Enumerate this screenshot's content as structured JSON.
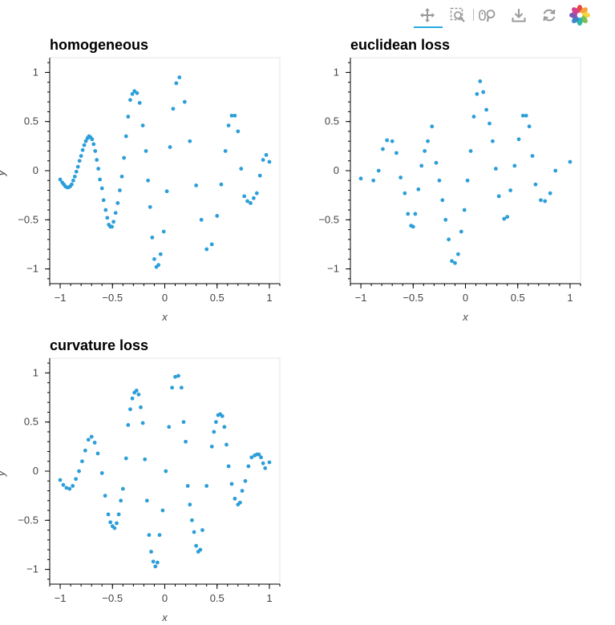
{
  "toolbar": {
    "tools": [
      {
        "name": "pan-tool",
        "icon": "move-arrows-icon",
        "active": true
      },
      {
        "name": "box-zoom-tool",
        "icon": "box-zoom-icon",
        "active": false
      },
      {
        "name": "wheel-zoom-tool",
        "icon": "wheel-zoom-icon",
        "active": false
      },
      {
        "name": "save-tool",
        "icon": "download-icon",
        "active": false
      },
      {
        "name": "reset-tool",
        "icon": "reset-icon",
        "active": false
      },
      {
        "name": "bokeh-logo",
        "icon": "bokeh-logo-icon",
        "active": false
      }
    ],
    "active_color": "#26aae1"
  },
  "chart_data": [
    {
      "type": "scatter",
      "title": "homogeneous",
      "xlabel": "x",
      "ylabel": "y",
      "xlim": [
        -1.1,
        1.1
      ],
      "ylim": [
        -1.15,
        1.15
      ],
      "xticks": [
        -1,
        -0.5,
        0,
        0.5,
        1
      ],
      "xtick_labels": [
        "−1",
        "−0.5",
        "0",
        "0.5",
        "1"
      ],
      "yticks": [
        -1,
        -0.5,
        0,
        0.5,
        1
      ],
      "ytick_labels": [
        "−1",
        "−0.5",
        "0",
        "0.5",
        "1"
      ],
      "grid": false,
      "color": "#2c9ed8",
      "x": [
        -1.0,
        -0.98,
        -0.965,
        -0.95,
        -0.935,
        -0.92,
        -0.905,
        -0.89,
        -0.875,
        -0.86,
        -0.845,
        -0.83,
        -0.815,
        -0.8,
        -0.785,
        -0.77,
        -0.755,
        -0.74,
        -0.725,
        -0.71,
        -0.695,
        -0.68,
        -0.665,
        -0.65,
        -0.635,
        -0.62,
        -0.6,
        -0.585,
        -0.565,
        -0.55,
        -0.535,
        -0.52,
        -0.505,
        -0.49,
        -0.47,
        -0.45,
        -0.43,
        -0.41,
        -0.39,
        -0.37,
        -0.35,
        -0.33,
        -0.31,
        -0.29,
        -0.265,
        -0.24,
        -0.21,
        -0.18,
        -0.16,
        -0.14,
        -0.12,
        -0.1,
        -0.08,
        -0.06,
        -0.04,
        -0.01,
        0.02,
        0.05,
        0.08,
        0.11,
        0.14,
        0.19,
        0.24,
        0.3,
        0.35,
        0.4,
        0.45,
        0.5,
        0.54,
        0.58,
        0.61,
        0.64,
        0.67,
        0.7,
        0.73,
        0.76,
        0.79,
        0.82,
        0.85,
        0.88,
        0.91,
        0.94,
        0.97,
        1.0
      ],
      "y": [
        -0.09,
        -0.12,
        -0.14,
        -0.16,
        -0.17,
        -0.17,
        -0.16,
        -0.14,
        -0.1,
        -0.06,
        -0.01,
        0.04,
        0.1,
        0.15,
        0.21,
        0.26,
        0.3,
        0.33,
        0.35,
        0.34,
        0.32,
        0.27,
        0.2,
        0.11,
        0.02,
        -0.09,
        -0.18,
        -0.3,
        -0.4,
        -0.48,
        -0.55,
        -0.57,
        -0.57,
        -0.52,
        -0.43,
        -0.33,
        -0.2,
        -0.06,
        0.13,
        0.35,
        0.55,
        0.72,
        0.78,
        0.81,
        0.79,
        0.69,
        0.46,
        0.2,
        -0.1,
        -0.37,
        -0.68,
        -0.9,
        -0.98,
        -0.96,
        -0.85,
        -0.62,
        -0.21,
        0.24,
        0.63,
        0.89,
        0.95,
        0.7,
        0.3,
        -0.15,
        -0.5,
        -0.8,
        -0.75,
        -0.46,
        -0.14,
        0.2,
        0.46,
        0.56,
        0.56,
        0.4,
        0.02,
        -0.26,
        -0.31,
        -0.33,
        -0.28,
        -0.23,
        -0.05,
        0.11,
        0.16,
        0.09
      ]
    },
    {
      "type": "scatter",
      "title": "euclidean loss",
      "xlabel": "x",
      "ylabel": "y",
      "xlim": [
        -1.1,
        1.1
      ],
      "ylim": [
        -1.15,
        1.15
      ],
      "xticks": [
        -1,
        -0.5,
        0,
        0.5,
        1
      ],
      "xtick_labels": [
        "−1",
        "−0.5",
        "0",
        "0.5",
        "1"
      ],
      "yticks": [
        -1,
        -0.5,
        0,
        0.5,
        1
      ],
      "ytick_labels": [
        "−1",
        "−0.5",
        "0",
        "0.5",
        "1"
      ],
      "grid": false,
      "color": "#2c9ed8",
      "x": [
        -1.0,
        -0.88,
        -0.83,
        -0.79,
        -0.75,
        -0.7,
        -0.66,
        -0.62,
        -0.58,
        -0.55,
        -0.52,
        -0.5,
        -0.48,
        -0.45,
        -0.42,
        -0.39,
        -0.36,
        -0.32,
        -0.28,
        -0.25,
        -0.22,
        -0.19,
        -0.16,
        -0.13,
        -0.1,
        -0.07,
        -0.04,
        -0.01,
        0.02,
        0.05,
        0.08,
        0.11,
        0.14,
        0.17,
        0.2,
        0.23,
        0.26,
        0.29,
        0.32,
        0.37,
        0.4,
        0.43,
        0.47,
        0.51,
        0.55,
        0.58,
        0.61,
        0.64,
        0.67,
        0.72,
        0.76,
        0.81,
        0.86,
        1.0
      ],
      "y": [
        -0.08,
        -0.1,
        0.0,
        0.22,
        0.31,
        0.3,
        0.18,
        -0.07,
        -0.23,
        -0.44,
        -0.56,
        -0.57,
        -0.44,
        -0.19,
        0.05,
        0.2,
        0.3,
        0.45,
        0.08,
        -0.1,
        -0.3,
        -0.5,
        -0.7,
        -0.92,
        -0.94,
        -0.85,
        -0.62,
        -0.4,
        -0.1,
        0.2,
        0.55,
        0.78,
        0.91,
        0.8,
        0.62,
        0.48,
        0.3,
        0.02,
        -0.26,
        -0.49,
        -0.47,
        -0.2,
        0.05,
        0.32,
        0.56,
        0.56,
        0.45,
        0.15,
        -0.14,
        -0.3,
        -0.31,
        -0.23,
        0.0,
        0.09
      ]
    },
    {
      "type": "scatter",
      "title": "curvature loss",
      "xlabel": "x",
      "ylabel": "y",
      "xlim": [
        -1.1,
        1.1
      ],
      "ylim": [
        -1.15,
        1.15
      ],
      "xticks": [
        -1,
        -0.5,
        0,
        0.5,
        1
      ],
      "xtick_labels": [
        "−1",
        "−0.5",
        "0",
        "0.5",
        "1"
      ],
      "yticks": [
        -1,
        -0.5,
        0,
        0.5,
        1
      ],
      "ytick_labels": [
        "−1",
        "−0.5",
        "0",
        "0.5",
        "1"
      ],
      "grid": false,
      "color": "#2c9ed8",
      "x": [
        -1.0,
        -0.97,
        -0.94,
        -0.91,
        -0.88,
        -0.85,
        -0.82,
        -0.79,
        -0.76,
        -0.73,
        -0.7,
        -0.67,
        -0.64,
        -0.6,
        -0.57,
        -0.54,
        -0.52,
        -0.5,
        -0.48,
        -0.46,
        -0.44,
        -0.42,
        -0.4,
        -0.37,
        -0.35,
        -0.33,
        -0.31,
        -0.29,
        -0.27,
        -0.25,
        -0.23,
        -0.21,
        -0.19,
        -0.17,
        -0.15,
        -0.13,
        -0.11,
        -0.09,
        -0.07,
        -0.05,
        -0.02,
        0.01,
        0.04,
        0.07,
        0.1,
        0.13,
        0.16,
        0.18,
        0.2,
        0.22,
        0.24,
        0.26,
        0.28,
        0.3,
        0.32,
        0.34,
        0.36,
        0.4,
        0.45,
        0.47,
        0.49,
        0.51,
        0.53,
        0.55,
        0.57,
        0.59,
        0.61,
        0.64,
        0.67,
        0.7,
        0.72,
        0.74,
        0.77,
        0.8,
        0.83,
        0.86,
        0.88,
        0.9,
        0.92,
        0.94,
        0.96,
        1.0
      ],
      "y": [
        -0.09,
        -0.14,
        -0.17,
        -0.18,
        -0.15,
        -0.08,
        0.0,
        0.1,
        0.21,
        0.32,
        0.35,
        0.29,
        0.18,
        -0.02,
        -0.25,
        -0.44,
        -0.52,
        -0.56,
        -0.58,
        -0.53,
        -0.44,
        -0.3,
        -0.18,
        0.13,
        0.47,
        0.63,
        0.74,
        0.8,
        0.82,
        0.78,
        0.65,
        0.49,
        0.12,
        -0.3,
        -0.65,
        -0.82,
        -0.92,
        -0.97,
        -0.93,
        -0.65,
        -0.4,
        0.0,
        0.45,
        0.85,
        0.96,
        0.97,
        0.85,
        0.5,
        0.3,
        -0.15,
        -0.34,
        -0.5,
        -0.62,
        -0.76,
        -0.82,
        -0.8,
        -0.6,
        -0.15,
        0.25,
        0.4,
        0.5,
        0.57,
        0.58,
        0.56,
        0.45,
        0.27,
        0.05,
        -0.13,
        -0.28,
        -0.34,
        -0.32,
        -0.2,
        -0.1,
        0.05,
        0.14,
        0.16,
        0.17,
        0.17,
        0.14,
        0.08,
        0.03,
        0.09
      ]
    }
  ]
}
